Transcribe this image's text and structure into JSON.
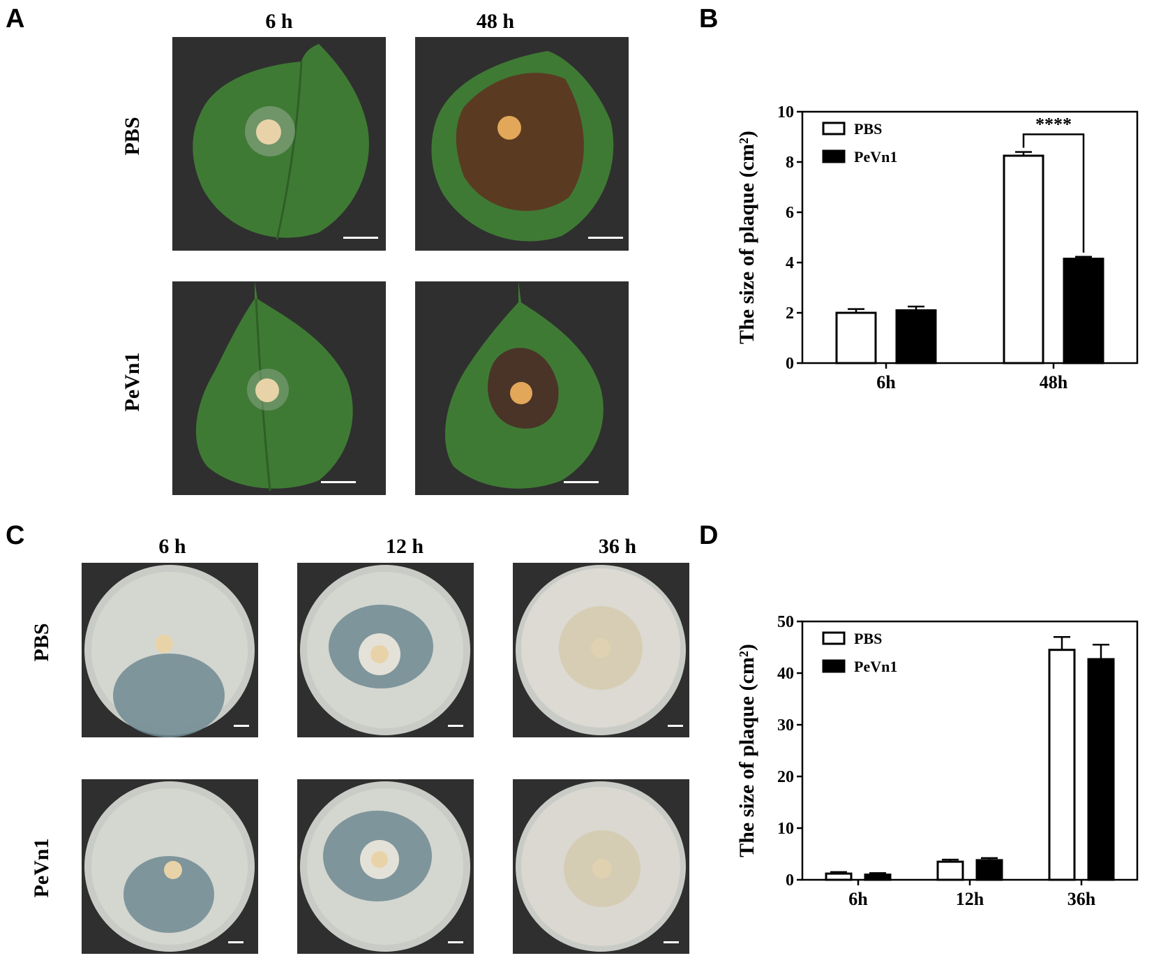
{
  "panels": {
    "A": {
      "letter": "A",
      "columns": [
        "6 h",
        "48 h"
      ],
      "rows": [
        "PBS",
        "PeVn1"
      ]
    },
    "B": {
      "letter": "B"
    },
    "C": {
      "letter": "C",
      "columns": [
        "6 h",
        "12 h",
        "36 h"
      ],
      "rows": [
        "PBS",
        "PeVn1"
      ]
    },
    "D": {
      "letter": "D"
    }
  },
  "chart_data": [
    {
      "id": "B",
      "type": "bar",
      "categories": [
        "6h",
        "48h"
      ],
      "series": [
        {
          "name": "PBS",
          "values": [
            2.0,
            8.25
          ],
          "errors": [
            0.15,
            0.15
          ],
          "fill": "#ffffff"
        },
        {
          "name": "PeVn1",
          "values": [
            2.1,
            4.15
          ],
          "errors": [
            0.15,
            0.08
          ],
          "fill": "#000000"
        }
      ],
      "ylabel": "The size of plaque (cm²)",
      "ylim": [
        0,
        10
      ],
      "yticks": [
        0,
        2,
        4,
        6,
        8,
        10
      ],
      "legend": "top-left",
      "annotations": [
        {
          "text": "****",
          "category": "48h"
        }
      ]
    },
    {
      "id": "D",
      "type": "bar",
      "categories": [
        "6h",
        "12h",
        "36h"
      ],
      "series": [
        {
          "name": "PBS",
          "values": [
            1.2,
            3.5,
            44.5
          ],
          "errors": [
            0.3,
            0.4,
            2.5
          ],
          "fill": "#ffffff"
        },
        {
          "name": "PeVn1",
          "values": [
            1.0,
            3.8,
            42.7
          ],
          "errors": [
            0.3,
            0.4,
            2.8
          ],
          "fill": "#000000"
        }
      ],
      "ylabel": "The size of plaque (cm²)",
      "ylim": [
        0,
        50
      ],
      "yticks": [
        0,
        10,
        20,
        30,
        40,
        50
      ],
      "legend": "top-left"
    }
  ],
  "colors": {
    "photo_background": "#2f2f2f",
    "leaf_green": "#3f7a34",
    "lesion_brown": "#5a3b22",
    "agar": "#cfd2cc",
    "mycelium_blue": "#6f8a92",
    "mycelium_white": "#e4e1d8",
    "inoculum": "#e8d3a8"
  }
}
